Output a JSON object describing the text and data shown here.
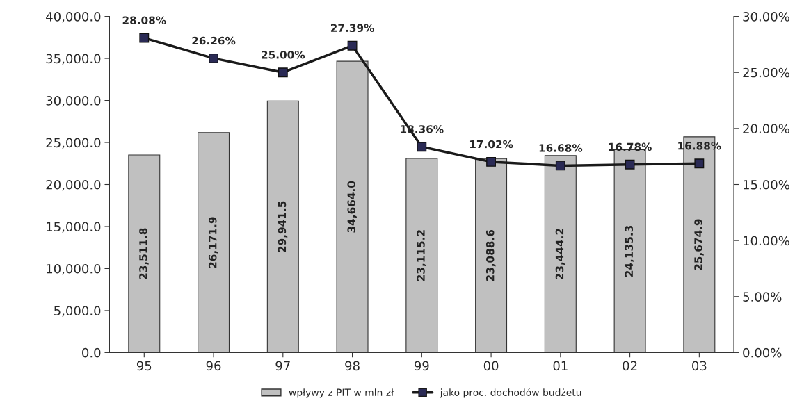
{
  "chart_data": {
    "type": "bar",
    "categories": [
      "95",
      "96",
      "97",
      "98",
      "99",
      "00",
      "01",
      "02",
      "03"
    ],
    "series": [
      {
        "name": "wpływy z PIT w mln zł",
        "color": "#c0c0c0",
        "values": [
          23511.8,
          26171.9,
          29941.5,
          34664.0,
          23115.2,
          23088.6,
          23444.2,
          24135.3,
          25674.9
        ],
        "value_labels": [
          "23,511.8",
          "26,171.9",
          "29,941.5",
          "34,664.0",
          "23,115.2",
          "23,088.6",
          "23,444.2",
          "24,135.3",
          "25,674.9"
        ]
      },
      {
        "name": "jako proc. dochodów budżetu",
        "type": "line",
        "axis": "y2",
        "color": "#1a1a1a",
        "marker": "square",
        "values": [
          28.08,
          26.26,
          25.0,
          27.39,
          18.36,
          17.02,
          16.68,
          16.78,
          16.88
        ],
        "value_labels": [
          "28.08%",
          "26.26%",
          "25.00%",
          "27.39%",
          "18.36%",
          "17.02%",
          "16.68%",
          "16.78%",
          "16.88%"
        ]
      }
    ],
    "ylim": [
      0,
      40000
    ],
    "yticks": [
      {
        "value": 0,
        "label": "0.0"
      },
      {
        "value": 5000,
        "label": "5,000.0"
      },
      {
        "value": 10000,
        "label": "10,000.0"
      },
      {
        "value": 15000,
        "label": "15,000.0"
      },
      {
        "value": 20000,
        "label": "20,000.0"
      },
      {
        "value": 25000,
        "label": "25,000.0"
      },
      {
        "value": 30000,
        "label": "30,000.0"
      },
      {
        "value": 35000,
        "label": "35,000.0"
      },
      {
        "value": 40000,
        "label": "40,000.0"
      }
    ],
    "y2lim": [
      0,
      30
    ],
    "y2ticks": [
      {
        "value": 0,
        "label": "0.00%"
      },
      {
        "value": 5,
        "label": "5.00%"
      },
      {
        "value": 10,
        "label": "10.00%"
      },
      {
        "value": 15,
        "label": "15.00%"
      },
      {
        "value": 20,
        "label": "20.00%"
      },
      {
        "value": 25,
        "label": "25.00%"
      },
      {
        "value": 30,
        "label": "30.00%"
      }
    ],
    "grid": false,
    "legend": "bottom"
  }
}
